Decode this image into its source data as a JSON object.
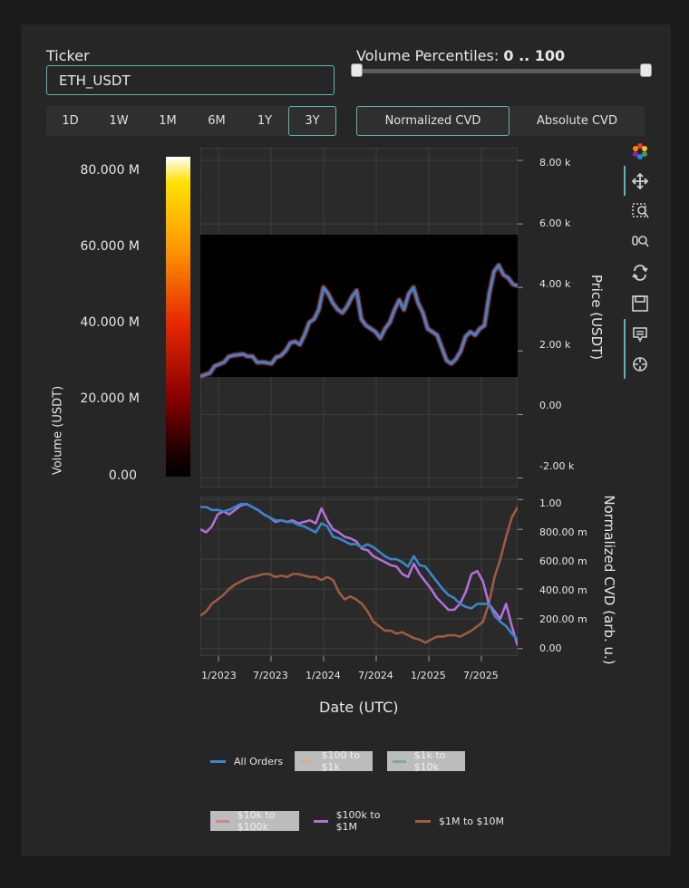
{
  "ticker": {
    "label": "Ticker",
    "value": "ETH_USDT"
  },
  "volume_percentiles": {
    "label": "Volume Percentiles:",
    "range_text": "0 .. 100",
    "low": 0,
    "high": 100
  },
  "timeframes": [
    {
      "label": "1D",
      "active": false
    },
    {
      "label": "1W",
      "active": false
    },
    {
      "label": "1M",
      "active": false
    },
    {
      "label": "6M",
      "active": false
    },
    {
      "label": "1Y",
      "active": false
    },
    {
      "label": "3Y",
      "active": true
    }
  ],
  "cvd_modes": [
    {
      "label": "Normalized CVD",
      "active": true
    },
    {
      "label": "Absolute CVD",
      "active": false
    }
  ],
  "toolbar": [
    "bokeh-logo-icon",
    "pan-icon",
    "box-zoom-icon",
    "wheel-zoom-icon",
    "reset-icon",
    "save-icon",
    "hover-icon",
    "crosshair-icon"
  ],
  "colors": {
    "accent": "#5fb3b3",
    "all_orders": "#3b86c9",
    "b100_1k": "#f0a360",
    "b1k_10k": "#4e9e4e",
    "b10k_100k": "#d9534f",
    "b100k_1m": "#b26fd6",
    "b1m_10m": "#9c5b43"
  },
  "chart_data": [
    {
      "type": "heatmap",
      "name": "colorbar",
      "ylabel": "Volume (USDT)",
      "ylim": [
        0,
        84000000
      ],
      "ticks": [
        80000000,
        60000000,
        40000000,
        20000000,
        0
      ],
      "tick_labels": [
        "80.000 M",
        "60.000 M",
        "40.000 M",
        "20.000 M",
        "0.00"
      ],
      "colormap": [
        "#000000",
        "#600000",
        "#cc1a00",
        "#ff7a00",
        "#ffd200",
        "#ffffff"
      ]
    },
    {
      "type": "line",
      "name": "price",
      "ylabel": "Price (USDT)",
      "ylim": [
        -2300,
        8400
      ],
      "yticks": [
        8000,
        6000,
        4000,
        2000,
        0,
        -2000
      ],
      "ytick_labels": [
        "8.00 k",
        "6.00 k",
        "4.00 k",
        "2.00 k",
        "0.00",
        "-2.00 k"
      ],
      "grid": true,
      "series": [
        {
          "name": "Price",
          "values": [
            1200,
            1250,
            1300,
            1520,
            1580,
            1640,
            1820,
            1860,
            1880,
            1900,
            1830,
            1830,
            1640,
            1650,
            1630,
            1600,
            1800,
            1850,
            2000,
            2250,
            2300,
            2200,
            2500,
            2900,
            3000,
            3300,
            4000,
            3800,
            3500,
            3300,
            3200,
            3400,
            3700,
            3900,
            3000,
            2800,
            2700,
            2600,
            2400,
            2700,
            2900,
            3300,
            3600,
            3300,
            3800,
            4000,
            3500,
            3200,
            2700,
            2600,
            2500,
            2100,
            1700,
            1600,
            1750,
            2000,
            2450,
            2600,
            2500,
            2700,
            2800,
            3800,
            4500,
            4700,
            4400,
            4300,
            4100,
            4050
          ]
        }
      ]
    },
    {
      "type": "line",
      "name": "cvd",
      "ylabel": "Normalized CVD (arb. u.)",
      "xlabel": "Date (UTC)",
      "ylim": [
        -0.05,
        1.02
      ],
      "yticks": [
        1,
        0.8,
        0.6,
        0.4,
        0.2,
        0
      ],
      "ytick_labels": [
        "1.00",
        "800.00 m",
        "600.00 m",
        "400.00 m",
        "200.00 m",
        "0.00"
      ],
      "xticks": [
        "1/2023",
        "7/2023",
        "1/2024",
        "7/2024",
        "1/2025",
        "7/2025"
      ],
      "grid": true,
      "series": [
        {
          "name": "All Orders",
          "values": [
            0.95,
            0.95,
            0.93,
            0.93,
            0.92,
            0.93,
            0.95,
            0.97,
            0.97,
            0.95,
            0.93,
            0.9,
            0.88,
            0.86,
            0.86,
            0.85,
            0.85,
            0.83,
            0.82,
            0.8,
            0.78,
            0.84,
            0.82,
            0.75,
            0.74,
            0.72,
            0.7,
            0.7,
            0.68,
            0.7,
            0.68,
            0.65,
            0.62,
            0.6,
            0.6,
            0.58,
            0.55,
            0.62,
            0.56,
            0.55,
            0.5,
            0.45,
            0.4,
            0.36,
            0.34,
            0.3,
            0.28,
            0.27,
            0.3,
            0.3,
            0.3,
            0.22,
            0.18,
            0.15,
            0.1,
            0.06
          ]
        },
        {
          "name": "$100 to $1k",
          "values": []
        },
        {
          "name": "$1k to $10k",
          "values": []
        },
        {
          "name": "$10k to $100k",
          "values": []
        },
        {
          "name": "$100k to $1M",
          "values": [
            0.8,
            0.78,
            0.82,
            0.9,
            0.92,
            0.9,
            0.93,
            0.96,
            0.97,
            0.95,
            0.93,
            0.9,
            0.88,
            0.85,
            0.86,
            0.85,
            0.86,
            0.84,
            0.85,
            0.86,
            0.84,
            0.94,
            0.86,
            0.8,
            0.78,
            0.75,
            0.74,
            0.72,
            0.67,
            0.66,
            0.62,
            0.6,
            0.58,
            0.56,
            0.55,
            0.5,
            0.48,
            0.57,
            0.5,
            0.45,
            0.4,
            0.34,
            0.3,
            0.26,
            0.26,
            0.3,
            0.38,
            0.5,
            0.52,
            0.45,
            0.3,
            0.25,
            0.2,
            0.3,
            0.15,
            0.02
          ]
        },
        {
          "name": "$1M to $10M",
          "values": [
            0.22,
            0.25,
            0.3,
            0.33,
            0.36,
            0.4,
            0.43,
            0.45,
            0.47,
            0.48,
            0.49,
            0.5,
            0.5,
            0.48,
            0.49,
            0.48,
            0.5,
            0.5,
            0.49,
            0.48,
            0.48,
            0.46,
            0.48,
            0.46,
            0.38,
            0.33,
            0.35,
            0.33,
            0.3,
            0.25,
            0.18,
            0.15,
            0.12,
            0.12,
            0.1,
            0.11,
            0.09,
            0.07,
            0.06,
            0.04,
            0.06,
            0.08,
            0.08,
            0.09,
            0.09,
            0.08,
            0.1,
            0.12,
            0.15,
            0.18,
            0.3,
            0.48,
            0.6,
            0.75,
            0.88,
            0.95
          ]
        }
      ]
    }
  ],
  "legend_row1": [
    {
      "label": "All Orders",
      "color_key": "all_orders",
      "muted": false
    },
    {
      "label": "$100 to $1k",
      "color_key": "b100_1k",
      "muted": true
    },
    {
      "label": "$1k to $10k",
      "color_key": "b1k_10k",
      "muted": true
    }
  ],
  "legend_row2": [
    {
      "label": "$10k to $100k",
      "color_key": "b10k_100k",
      "muted": true
    },
    {
      "label": "$100k to $1M",
      "color_key": "b100k_1m",
      "muted": false
    },
    {
      "label": "$1M to $10M",
      "color_key": "b1m_10m",
      "muted": false
    }
  ]
}
